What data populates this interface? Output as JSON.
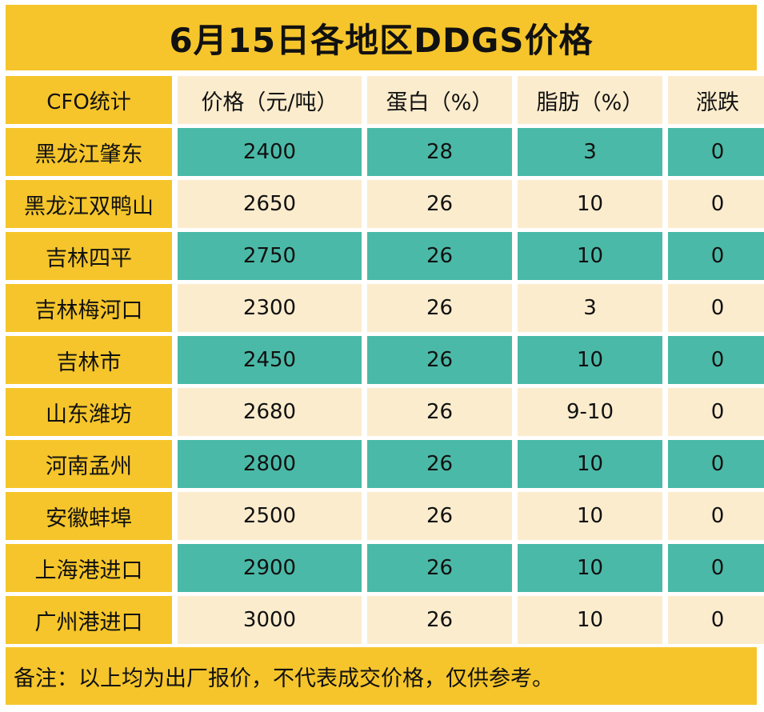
{
  "title": "6月15日各地区DDGS价格",
  "header": {
    "corner": "CFO统计",
    "columns": [
      "价格（元/吨）",
      "蛋白（%）",
      "脂肪（%）",
      "涨跌"
    ]
  },
  "rows": [
    {
      "region": "黑龙江肇东",
      "price": "2400",
      "protein": "28",
      "fat": "3",
      "change": "0"
    },
    {
      "region": "黑龙江双鸭山",
      "price": "2650",
      "protein": "26",
      "fat": "10",
      "change": "0"
    },
    {
      "region": "吉林四平",
      "price": "2750",
      "protein": "26",
      "fat": "10",
      "change": "0"
    },
    {
      "region": "吉林梅河口",
      "price": "2300",
      "protein": "26",
      "fat": "3",
      "change": "0"
    },
    {
      "region": "吉林市",
      "price": "2450",
      "protein": "26",
      "fat": "10",
      "change": "0"
    },
    {
      "region": "山东潍坊",
      "price": "2680",
      "protein": "26",
      "fat": "9-10",
      "change": "0"
    },
    {
      "region": "河南孟州",
      "price": "2800",
      "protein": "26",
      "fat": "10",
      "change": "0"
    },
    {
      "region": "安徽蚌埠",
      "price": "2500",
      "protein": "26",
      "fat": "10",
      "change": "0"
    },
    {
      "region": "上海港进口",
      "price": "2900",
      "protein": "26",
      "fat": "10",
      "change": "0"
    },
    {
      "region": "广州港进口",
      "price": "3000",
      "protein": "26",
      "fat": "10",
      "change": "0"
    }
  ],
  "footer": "备注：以上均为出厂报价，不代表成交价格，仅供参考。",
  "colors": {
    "yellow": "#f5c52b",
    "teal": "#4bb9a7",
    "cream": "#fbeccd"
  }
}
